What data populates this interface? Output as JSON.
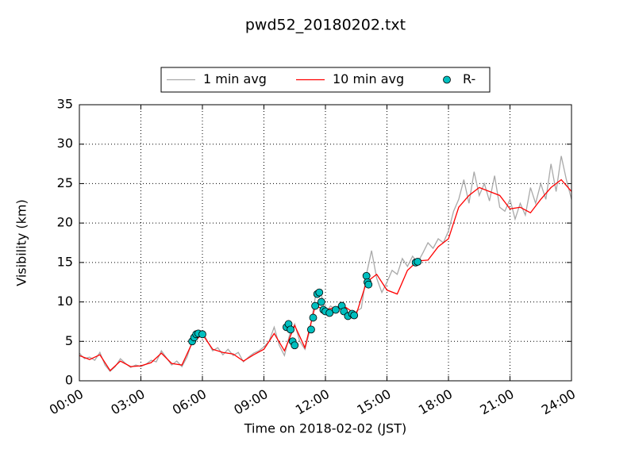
{
  "chart_data": {
    "type": "line",
    "title": "pwd52_20180202.txt",
    "xlabel": "Time on 2018-02-02 (JST)",
    "ylabel": "Visibility (km)",
    "xlim": [
      0,
      24
    ],
    "xticks": [
      {
        "value": 0,
        "label": "00:00"
      },
      {
        "value": 3,
        "label": "03:00"
      },
      {
        "value": 6,
        "label": "06:00"
      },
      {
        "value": 9,
        "label": "09:00"
      },
      {
        "value": 12,
        "label": "12:00"
      },
      {
        "value": 15,
        "label": "15:00"
      },
      {
        "value": 18,
        "label": "18:00"
      },
      {
        "value": 21,
        "label": "21:00"
      },
      {
        "value": 24,
        "label": "24:00"
      }
    ],
    "ylim": [
      0,
      35
    ],
    "yticks": [
      0,
      5,
      10,
      15,
      20,
      25,
      30,
      35
    ],
    "grid": true,
    "legend": "top",
    "series": [
      {
        "name": "1 min avg",
        "kind": "line",
        "color": "#a9a9a9",
        "x": [
          0,
          0.25,
          0.5,
          0.75,
          1,
          1.25,
          1.5,
          1.75,
          2,
          2.25,
          2.5,
          2.75,
          3,
          3.25,
          3.5,
          3.75,
          4,
          4.25,
          4.5,
          4.75,
          5,
          5.25,
          5.5,
          5.75,
          6,
          6.25,
          6.5,
          6.75,
          7,
          7.25,
          7.5,
          7.75,
          8,
          8.25,
          8.5,
          8.75,
          9,
          9.25,
          9.5,
          9.75,
          10,
          10.25,
          10.5,
          10.75,
          11,
          11.25,
          11.5,
          11.75,
          12,
          12.25,
          12.5,
          12.75,
          13,
          13.25,
          13.5,
          13.75,
          14,
          14.25,
          14.5,
          14.75,
          15,
          15.25,
          15.5,
          15.75,
          16,
          16.25,
          16.5,
          16.75,
          17,
          17.25,
          17.5,
          17.75,
          18,
          18.25,
          18.5,
          18.75,
          19,
          19.25,
          19.5,
          19.75,
          20,
          20.25,
          20.5,
          20.75,
          21,
          21.25,
          21.5,
          21.75,
          22,
          22.25,
          22.5,
          22.75,
          23,
          23.25,
          23.5,
          23.75,
          24
        ],
        "values": [
          3.5,
          2.8,
          3.0,
          2.6,
          3.6,
          2.0,
          1.2,
          1.8,
          2.8,
          2.2,
          1.7,
          2.0,
          1.8,
          2.1,
          2.6,
          2.4,
          3.8,
          2.9,
          2.0,
          2.5,
          1.8,
          3.0,
          5.0,
          5.5,
          6.3,
          5.0,
          3.8,
          4.2,
          3.3,
          4.0,
          3.2,
          3.6,
          2.4,
          3.0,
          3.5,
          3.8,
          4.3,
          5.0,
          6.8,
          4.5,
          3.2,
          5.8,
          7.2,
          5.0,
          4.0,
          6.5,
          10.5,
          11.5,
          8.6,
          9.5,
          9.0,
          10.0,
          9.0,
          8.2,
          8.8,
          9.2,
          13.5,
          16.5,
          13.0,
          11.2,
          12.5,
          14.0,
          13.5,
          15.5,
          14.5,
          15.8,
          15.0,
          16.2,
          17.5,
          16.8,
          18.0,
          17.5,
          19.0,
          21.5,
          23.0,
          25.5,
          22.5,
          26.5,
          23.5,
          25.0,
          22.8,
          26.0,
          22.0,
          21.5,
          23.0,
          20.5,
          22.5,
          21.0,
          24.5,
          22.5,
          25.0,
          23.0,
          27.5,
          24.0,
          28.5,
          25.5,
          23.0
        ]
      },
      {
        "name": "10 min avg",
        "kind": "line",
        "color": "#ff0000",
        "x": [
          0,
          0.5,
          1,
          1.5,
          2,
          2.5,
          3,
          3.5,
          4,
          4.5,
          5,
          5.5,
          6,
          6.5,
          7,
          7.5,
          8,
          8.5,
          9,
          9.5,
          10,
          10.5,
          11,
          11.5,
          12,
          12.5,
          13,
          13.5,
          14,
          14.5,
          15,
          15.5,
          16,
          16.5,
          17,
          17.5,
          18,
          18.5,
          19,
          19.5,
          20,
          20.5,
          21,
          21.5,
          22,
          22.5,
          23,
          23.5,
          24
        ],
        "values": [
          3.2,
          2.7,
          3.3,
          1.3,
          2.5,
          1.8,
          1.9,
          2.3,
          3.5,
          2.2,
          2.0,
          4.8,
          5.9,
          4.0,
          3.6,
          3.4,
          2.5,
          3.3,
          4.0,
          6.0,
          3.8,
          7.0,
          4.2,
          9.5,
          9.0,
          9.3,
          9.3,
          8.4,
          12.5,
          13.5,
          11.5,
          11.0,
          14.0,
          15.2,
          15.3,
          17.0,
          18.0,
          22.0,
          23.5,
          24.5,
          24.0,
          23.5,
          21.8,
          22.0,
          21.3,
          23.0,
          24.5,
          25.5,
          24.0
        ]
      },
      {
        "name": "R-",
        "kind": "scatter",
        "color": "#00bfbf",
        "x": [
          5.5,
          5.6,
          5.7,
          5.8,
          6.0,
          10.1,
          10.2,
          10.3,
          10.4,
          10.5,
          11.3,
          11.4,
          11.5,
          11.6,
          11.7,
          11.8,
          11.9,
          12.0,
          12.2,
          12.5,
          12.8,
          12.9,
          13.1,
          13.3,
          13.4,
          14.0,
          14.05,
          14.1,
          16.4,
          16.5
        ],
        "values": [
          5.0,
          5.5,
          5.9,
          6.0,
          5.9,
          6.8,
          7.2,
          6.5,
          5.0,
          4.5,
          6.5,
          8.0,
          9.5,
          11.0,
          11.2,
          10.0,
          9.0,
          8.8,
          8.6,
          9.0,
          9.5,
          8.8,
          8.2,
          8.5,
          8.3,
          13.3,
          12.5,
          12.2,
          15.0,
          15.1
        ]
      }
    ]
  }
}
